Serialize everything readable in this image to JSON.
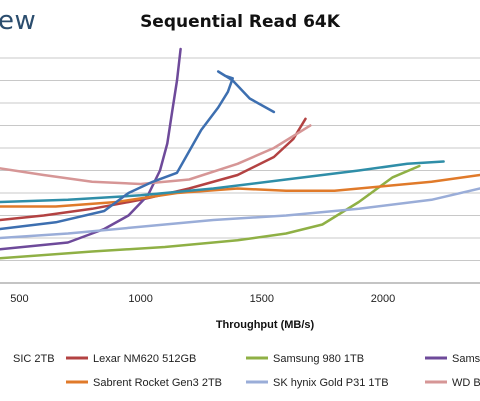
{
  "page": {
    "brand_text": "ew"
  },
  "chart_data": {
    "type": "line",
    "title": "Sequential Read 64K",
    "xlabel": "Throughput (MB/s)",
    "ylabel": "",
    "xlim": [
      420,
      2400
    ],
    "x_ticks": [
      500,
      1000,
      1500,
      2000
    ],
    "grid": true,
    "legend_position": "bottom",
    "series": [
      {
        "name": "SIC 2TB",
        "color": "#4a7ab8",
        "points": []
      },
      {
        "name": "Lexar NM620 512GB",
        "color": "#b34242",
        "points": [
          [
            420,
            0.72
          ],
          [
            600,
            0.7
          ],
          [
            800,
            0.67
          ],
          [
            1000,
            0.63
          ],
          [
            1200,
            0.58
          ],
          [
            1400,
            0.52
          ],
          [
            1550,
            0.44
          ],
          [
            1630,
            0.36
          ],
          [
            1680,
            0.27
          ]
        ]
      },
      {
        "name": "Samsung 980 1TB",
        "color": "#8fb045",
        "points": [
          [
            420,
            0.89
          ],
          [
            800,
            0.86
          ],
          [
            1100,
            0.84
          ],
          [
            1400,
            0.81
          ],
          [
            1600,
            0.78
          ],
          [
            1750,
            0.74
          ],
          [
            1900,
            0.64
          ],
          [
            2040,
            0.53
          ],
          [
            2150,
            0.48
          ]
        ]
      },
      {
        "name": "Samsung",
        "color": "#6e4a9a",
        "points": [
          [
            420,
            0.85
          ],
          [
            700,
            0.82
          ],
          [
            850,
            0.76
          ],
          [
            950,
            0.7
          ],
          [
            1030,
            0.61
          ],
          [
            1080,
            0.5
          ],
          [
            1110,
            0.38
          ],
          [
            1130,
            0.24
          ],
          [
            1150,
            0.1
          ],
          [
            1165,
            -0.04
          ]
        ]
      },
      {
        "name": "Sabrent Rocket Gen3 2TB",
        "color": "#e07a2a",
        "points": [
          [
            420,
            0.66
          ],
          [
            650,
            0.66
          ],
          [
            900,
            0.64
          ],
          [
            1150,
            0.6
          ],
          [
            1400,
            0.58
          ],
          [
            1600,
            0.59
          ],
          [
            1800,
            0.59
          ],
          [
            2000,
            0.57
          ],
          [
            2200,
            0.55
          ],
          [
            2400,
            0.52
          ]
        ]
      },
      {
        "name": "SK hynix Gold P31 1TB",
        "color": "#9aadd8",
        "points": [
          [
            420,
            0.8
          ],
          [
            700,
            0.78
          ],
          [
            1000,
            0.75
          ],
          [
            1300,
            0.72
          ],
          [
            1600,
            0.7
          ],
          [
            1900,
            0.67
          ],
          [
            2200,
            0.63
          ],
          [
            2400,
            0.58
          ]
        ]
      },
      {
        "name": "WD B",
        "color": "#d69696",
        "points": [
          [
            420,
            0.49
          ],
          [
            600,
            0.52
          ],
          [
            800,
            0.55
          ],
          [
            1000,
            0.56
          ],
          [
            1200,
            0.54
          ],
          [
            1400,
            0.47
          ],
          [
            1550,
            0.4
          ],
          [
            1700,
            0.3
          ]
        ]
      },
      {
        "name": "",
        "color": "#2f8ea8",
        "points": [
          [
            420,
            0.64
          ],
          [
            700,
            0.63
          ],
          [
            1000,
            0.61
          ],
          [
            1300,
            0.58
          ],
          [
            1600,
            0.54
          ],
          [
            1900,
            0.5
          ],
          [
            2100,
            0.47
          ],
          [
            2250,
            0.46
          ]
        ]
      },
      {
        "name": "",
        "color": "#3d6fb0",
        "points": [
          [
            420,
            0.76
          ],
          [
            650,
            0.73
          ],
          [
            850,
            0.68
          ],
          [
            950,
            0.6
          ],
          [
            1050,
            0.55
          ],
          [
            1150,
            0.51
          ],
          [
            1250,
            0.32
          ],
          [
            1320,
            0.22
          ],
          [
            1360,
            0.15
          ],
          [
            1380,
            0.09
          ],
          [
            1350,
            0.08
          ],
          [
            1320,
            0.06
          ],
          [
            1380,
            0.1
          ],
          [
            1450,
            0.18
          ],
          [
            1550,
            0.24
          ]
        ]
      }
    ]
  }
}
